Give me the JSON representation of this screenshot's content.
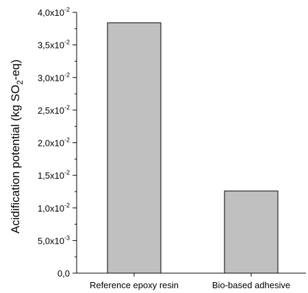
{
  "chart_data": {
    "type": "bar",
    "categories": [
      "Reference epoxy resin",
      "Bio-based adhesive"
    ],
    "values": [
      0.0384,
      0.0126
    ],
    "ylabel": {
      "before": "Acidification potential (kg SO",
      "sub": "2",
      "after": "-eq)"
    },
    "ylim": [
      0,
      0.04
    ],
    "yticks": [
      {
        "value": 0,
        "mantissa": "0,0",
        "exponent": ""
      },
      {
        "value": 0.005,
        "mantissa": "5,0x10",
        "exponent": "-3"
      },
      {
        "value": 0.01,
        "mantissa": "1,0x10",
        "exponent": "-2"
      },
      {
        "value": 0.015,
        "mantissa": "1,5x10",
        "exponent": "-2"
      },
      {
        "value": 0.02,
        "mantissa": "2,0x10",
        "exponent": "-2"
      },
      {
        "value": 0.025,
        "mantissa": "2,5x10",
        "exponent": "-2"
      },
      {
        "value": 0.03,
        "mantissa": "3,0x10",
        "exponent": "-2"
      },
      {
        "value": 0.035,
        "mantissa": "3,5x10",
        "exponent": "-2"
      },
      {
        "value": 0.04,
        "mantissa": "4,0x10",
        "exponent": "-2"
      }
    ],
    "grid": false,
    "legend": "none",
    "colors": {
      "bar_fill": "#c0c0c0",
      "bar_stroke": "#000000",
      "axis": "#000000"
    }
  }
}
